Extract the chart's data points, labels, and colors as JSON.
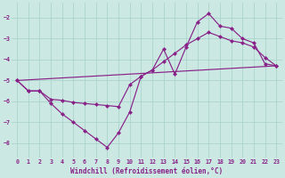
{
  "background_color": "#cce8e2",
  "grid_color": "#aad4cc",
  "line_color": "#882288",
  "xlabel": "Windchill (Refroidissement éolien,°C)",
  "xlim": [
    -0.5,
    23.5
  ],
  "ylim": [
    -8.7,
    -1.3
  ],
  "yticks": [
    -8,
    -7,
    -6,
    -5,
    -4,
    -3,
    -2
  ],
  "xticks": [
    0,
    1,
    2,
    3,
    4,
    5,
    6,
    7,
    8,
    9,
    10,
    11,
    12,
    13,
    14,
    15,
    16,
    17,
    18,
    19,
    20,
    21,
    22,
    23
  ],
  "line1_x": [
    0,
    1,
    2,
    3,
    4,
    5,
    6,
    7,
    8,
    9,
    10,
    11,
    12,
    13,
    14,
    15,
    16,
    17,
    18,
    19,
    20,
    21,
    22,
    23
  ],
  "line1_y": [
    -5.0,
    -5.5,
    -5.5,
    -6.1,
    -6.6,
    -7.0,
    -7.4,
    -7.8,
    -8.2,
    -7.5,
    -6.5,
    -4.8,
    -4.5,
    -3.5,
    -4.7,
    -3.4,
    -2.2,
    -1.8,
    -2.4,
    -2.5,
    -3.0,
    -3.2,
    -4.2,
    -4.3
  ],
  "line2_x": [
    0,
    1,
    2,
    3,
    4,
    5,
    6,
    7,
    8,
    9,
    10,
    11,
    12,
    13,
    14,
    15,
    16,
    17,
    18,
    19,
    20,
    21,
    22,
    23
  ],
  "line2_y": [
    -5.0,
    -5.5,
    -5.5,
    -5.9,
    -5.95,
    -6.05,
    -6.1,
    -6.15,
    -6.2,
    -6.25,
    -5.2,
    -4.8,
    -4.5,
    -4.1,
    -3.7,
    -3.3,
    -3.0,
    -2.7,
    -2.9,
    -3.1,
    -3.2,
    -3.4,
    -3.9,
    -4.3
  ],
  "line3_x": [
    0,
    23
  ],
  "line3_y": [
    -5.0,
    -4.3
  ],
  "marker_size": 2.5,
  "lw": 0.85
}
